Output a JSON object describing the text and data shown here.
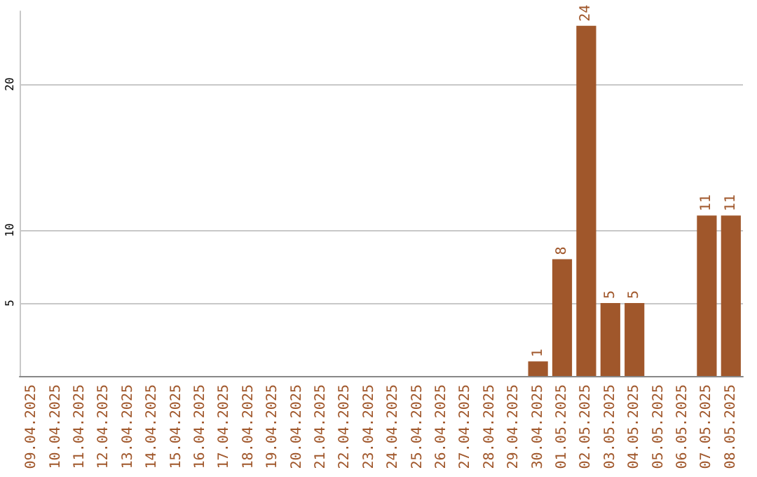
{
  "chart_data": {
    "type": "bar",
    "categories": [
      "09.04.2025",
      "10.04.2025",
      "11.04.2025",
      "12.04.2025",
      "13.04.2025",
      "14.04.2025",
      "15.04.2025",
      "16.04.2025",
      "17.04.2025",
      "18.04.2025",
      "19.04.2025",
      "20.04.2025",
      "21.04.2025",
      "22.04.2025",
      "23.04.2025",
      "24.04.2025",
      "25.04.2025",
      "26.04.2025",
      "27.04.2025",
      "28.04.2025",
      "29.04.2025",
      "30.04.2025",
      "01.05.2025",
      "02.05.2025",
      "03.05.2025",
      "04.05.2025",
      "05.05.2025",
      "06.05.2025",
      "07.05.2025",
      "08.05.2025"
    ],
    "values": [
      0,
      0,
      0,
      0,
      0,
      0,
      0,
      0,
      0,
      0,
      0,
      0,
      0,
      0,
      0,
      0,
      0,
      0,
      0,
      0,
      0,
      1,
      8,
      24,
      5,
      5,
      0,
      0,
      11,
      11
    ],
    "value_labels": [
      null,
      null,
      null,
      null,
      null,
      null,
      null,
      null,
      null,
      null,
      null,
      null,
      null,
      null,
      null,
      null,
      null,
      null,
      null,
      null,
      null,
      "1",
      "8",
      "24",
      "5",
      "5",
      null,
      null,
      "11",
      "11"
    ],
    "color": "#a0572b",
    "ylim": [
      0,
      25
    ],
    "yticks": [
      5,
      10,
      20
    ],
    "grid": "y"
  }
}
